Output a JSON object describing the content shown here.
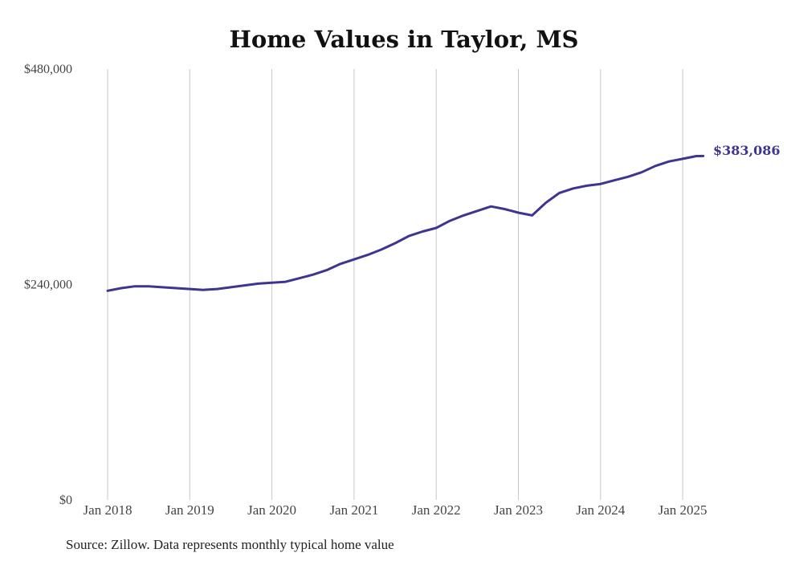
{
  "chart_data": {
    "type": "line",
    "title": "Home Values in Taylor, MS",
    "source": "Source: Zillow. Data represents monthly typical home value",
    "xlabel": "",
    "ylabel": "",
    "x_ticks": [
      "Jan 2018",
      "Jan 2019",
      "Jan 2020",
      "Jan 2021",
      "Jan 2022",
      "Jan 2023",
      "Jan 2024",
      "Jan 2025"
    ],
    "y_ticks": [
      "$0",
      "$240,000",
      "$480,000"
    ],
    "ylim": [
      0,
      480000
    ],
    "xlim": [
      "2018-01",
      "2025-04"
    ],
    "grid": "vertical",
    "line_color": "#3d3590",
    "end_label": "$383,086",
    "series": [
      {
        "points": [
          [
            "2018-01",
            233000
          ],
          [
            "2018-03",
            236000
          ],
          [
            "2018-05",
            238000
          ],
          [
            "2018-07",
            238000
          ],
          [
            "2018-09",
            237000
          ],
          [
            "2018-11",
            236000
          ],
          [
            "2019-01",
            235000
          ],
          [
            "2019-03",
            234000
          ],
          [
            "2019-05",
            235000
          ],
          [
            "2019-07",
            237000
          ],
          [
            "2019-09",
            239000
          ],
          [
            "2019-11",
            241000
          ],
          [
            "2020-01",
            242000
          ],
          [
            "2020-03",
            243000
          ],
          [
            "2020-05",
            247000
          ],
          [
            "2020-07",
            251000
          ],
          [
            "2020-09",
            256000
          ],
          [
            "2020-11",
            263000
          ],
          [
            "2021-01",
            268000
          ],
          [
            "2021-03",
            273000
          ],
          [
            "2021-05",
            279000
          ],
          [
            "2021-07",
            286000
          ],
          [
            "2021-09",
            294000
          ],
          [
            "2021-11",
            299000
          ],
          [
            "2022-01",
            303000
          ],
          [
            "2022-03",
            311000
          ],
          [
            "2022-05",
            317000
          ],
          [
            "2022-07",
            322000
          ],
          [
            "2022-09",
            327000
          ],
          [
            "2022-11",
            324000
          ],
          [
            "2023-01",
            320000
          ],
          [
            "2023-03",
            317000
          ],
          [
            "2023-05",
            331000
          ],
          [
            "2023-07",
            342000
          ],
          [
            "2023-09",
            347000
          ],
          [
            "2023-11",
            350000
          ],
          [
            "2024-01",
            352000
          ],
          [
            "2024-03",
            356000
          ],
          [
            "2024-05",
            360000
          ],
          [
            "2024-07",
            365000
          ],
          [
            "2024-09",
            372000
          ],
          [
            "2024-11",
            377000
          ],
          [
            "2025-01",
            380000
          ],
          [
            "2025-03",
            383000
          ],
          [
            "2025-04",
            383086
          ]
        ]
      }
    ]
  }
}
